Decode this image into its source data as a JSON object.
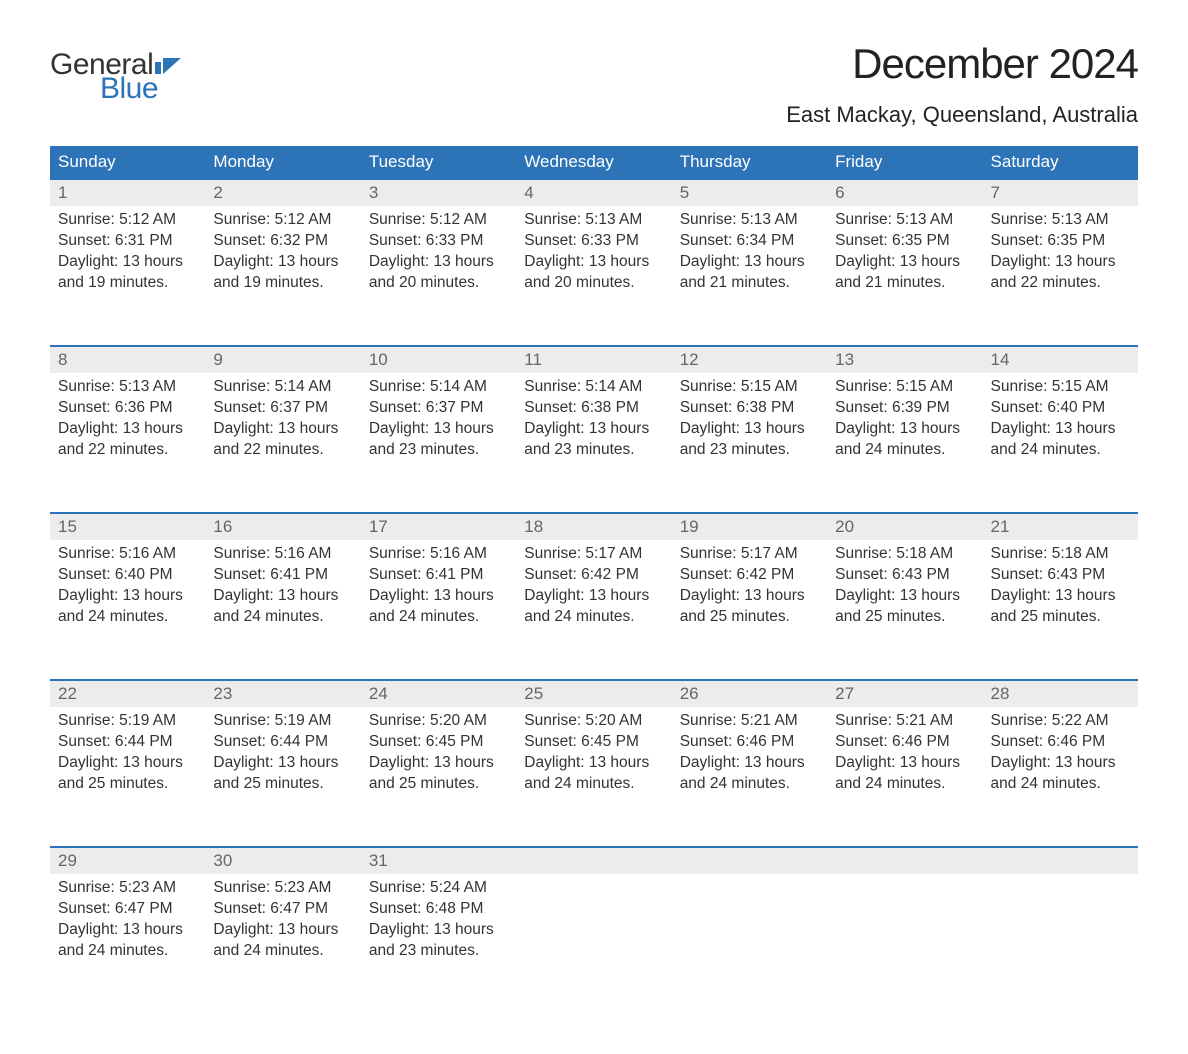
{
  "brand": {
    "word1": "General",
    "word2": "Blue",
    "color_primary": "#2d73b8",
    "color_flag": "#2d73b8"
  },
  "title": "December 2024",
  "location": "East Mackay, Queensland, Australia",
  "colors": {
    "header_bg": "#2d73b8",
    "header_text": "#ffffff",
    "daynum_bg": "#ececec",
    "daynum_text": "#666666",
    "body_text": "#333333",
    "rule": "#2d73b8",
    "page_bg": "#ffffff"
  },
  "typography": {
    "title_fontsize": 42,
    "location_fontsize": 22,
    "header_fontsize": 17,
    "body_fontsize": 15.5
  },
  "weekdays": [
    "Sunday",
    "Monday",
    "Tuesday",
    "Wednesday",
    "Thursday",
    "Friday",
    "Saturday"
  ],
  "labels": {
    "sunrise": "Sunrise: ",
    "sunset": "Sunset: ",
    "daylight": "Daylight: "
  },
  "days": [
    {
      "n": "1",
      "sunrise": "5:12 AM",
      "sunset": "6:31 PM",
      "daylight": "13 hours and 19 minutes."
    },
    {
      "n": "2",
      "sunrise": "5:12 AM",
      "sunset": "6:32 PM",
      "daylight": "13 hours and 19 minutes."
    },
    {
      "n": "3",
      "sunrise": "5:12 AM",
      "sunset": "6:33 PM",
      "daylight": "13 hours and 20 minutes."
    },
    {
      "n": "4",
      "sunrise": "5:13 AM",
      "sunset": "6:33 PM",
      "daylight": "13 hours and 20 minutes."
    },
    {
      "n": "5",
      "sunrise": "5:13 AM",
      "sunset": "6:34 PM",
      "daylight": "13 hours and 21 minutes."
    },
    {
      "n": "6",
      "sunrise": "5:13 AM",
      "sunset": "6:35 PM",
      "daylight": "13 hours and 21 minutes."
    },
    {
      "n": "7",
      "sunrise": "5:13 AM",
      "sunset": "6:35 PM",
      "daylight": "13 hours and 22 minutes."
    },
    {
      "n": "8",
      "sunrise": "5:13 AM",
      "sunset": "6:36 PM",
      "daylight": "13 hours and 22 minutes."
    },
    {
      "n": "9",
      "sunrise": "5:14 AM",
      "sunset": "6:37 PM",
      "daylight": "13 hours and 22 minutes."
    },
    {
      "n": "10",
      "sunrise": "5:14 AM",
      "sunset": "6:37 PM",
      "daylight": "13 hours and 23 minutes."
    },
    {
      "n": "11",
      "sunrise": "5:14 AM",
      "sunset": "6:38 PM",
      "daylight": "13 hours and 23 minutes."
    },
    {
      "n": "12",
      "sunrise": "5:15 AM",
      "sunset": "6:38 PM",
      "daylight": "13 hours and 23 minutes."
    },
    {
      "n": "13",
      "sunrise": "5:15 AM",
      "sunset": "6:39 PM",
      "daylight": "13 hours and 24 minutes."
    },
    {
      "n": "14",
      "sunrise": "5:15 AM",
      "sunset": "6:40 PM",
      "daylight": "13 hours and 24 minutes."
    },
    {
      "n": "15",
      "sunrise": "5:16 AM",
      "sunset": "6:40 PM",
      "daylight": "13 hours and 24 minutes."
    },
    {
      "n": "16",
      "sunrise": "5:16 AM",
      "sunset": "6:41 PM",
      "daylight": "13 hours and 24 minutes."
    },
    {
      "n": "17",
      "sunrise": "5:16 AM",
      "sunset": "6:41 PM",
      "daylight": "13 hours and 24 minutes."
    },
    {
      "n": "18",
      "sunrise": "5:17 AM",
      "sunset": "6:42 PM",
      "daylight": "13 hours and 24 minutes."
    },
    {
      "n": "19",
      "sunrise": "5:17 AM",
      "sunset": "6:42 PM",
      "daylight": "13 hours and 25 minutes."
    },
    {
      "n": "20",
      "sunrise": "5:18 AM",
      "sunset": "6:43 PM",
      "daylight": "13 hours and 25 minutes."
    },
    {
      "n": "21",
      "sunrise": "5:18 AM",
      "sunset": "6:43 PM",
      "daylight": "13 hours and 25 minutes."
    },
    {
      "n": "22",
      "sunrise": "5:19 AM",
      "sunset": "6:44 PM",
      "daylight": "13 hours and 25 minutes."
    },
    {
      "n": "23",
      "sunrise": "5:19 AM",
      "sunset": "6:44 PM",
      "daylight": "13 hours and 25 minutes."
    },
    {
      "n": "24",
      "sunrise": "5:20 AM",
      "sunset": "6:45 PM",
      "daylight": "13 hours and 25 minutes."
    },
    {
      "n": "25",
      "sunrise": "5:20 AM",
      "sunset": "6:45 PM",
      "daylight": "13 hours and 24 minutes."
    },
    {
      "n": "26",
      "sunrise": "5:21 AM",
      "sunset": "6:46 PM",
      "daylight": "13 hours and 24 minutes."
    },
    {
      "n": "27",
      "sunrise": "5:21 AM",
      "sunset": "6:46 PM",
      "daylight": "13 hours and 24 minutes."
    },
    {
      "n": "28",
      "sunrise": "5:22 AM",
      "sunset": "6:46 PM",
      "daylight": "13 hours and 24 minutes."
    },
    {
      "n": "29",
      "sunrise": "5:23 AM",
      "sunset": "6:47 PM",
      "daylight": "13 hours and 24 minutes."
    },
    {
      "n": "30",
      "sunrise": "5:23 AM",
      "sunset": "6:47 PM",
      "daylight": "13 hours and 24 minutes."
    },
    {
      "n": "31",
      "sunrise": "5:24 AM",
      "sunset": "6:48 PM",
      "daylight": "13 hours and 23 minutes."
    }
  ],
  "grid": {
    "start_weekday_index": 0,
    "total_cells": 35
  }
}
